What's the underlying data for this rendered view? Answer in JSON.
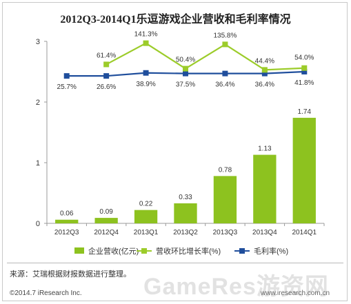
{
  "chart_data": {
    "type": "bar+line",
    "title": "2012Q3-2014Q1乐逗游戏企业营收和毛利率情况",
    "categories": [
      "2012Q3",
      "2012Q4",
      "2013Q1",
      "2013Q2",
      "2013Q3",
      "2013Q4",
      "2014Q1"
    ],
    "ylim": [
      0,
      3
    ],
    "yticks": [
      "0",
      "1",
      "2",
      "3"
    ],
    "grid": false,
    "legend_position": "bottom",
    "series": [
      {
        "name": "企业营收(亿元)",
        "kind": "bar",
        "color": "#8dc21f",
        "values": [
          0.06,
          0.09,
          0.22,
          0.33,
          0.78,
          1.13,
          1.74
        ],
        "labels": [
          "0.06",
          "0.09",
          "0.22",
          "0.33",
          "0.78",
          "1.13",
          "1.74"
        ]
      },
      {
        "name": "营收环比增长率(%)",
        "kind": "line",
        "color": "#9ccc2a",
        "values": [
          null,
          2.62,
          2.97,
          2.55,
          2.95,
          2.53,
          2.56
        ],
        "labels": [
          "",
          "61.4%",
          "141.3%",
          "50.4%",
          "135.8%",
          "44.4%",
          "54.0%"
        ]
      },
      {
        "name": "毛利率(%)",
        "kind": "line",
        "color": "#1f4e9c",
        "values": [
          2.43,
          2.43,
          2.48,
          2.47,
          2.47,
          2.47,
          2.5
        ],
        "labels": [
          "25.7%",
          "26.6%",
          "38.9%",
          "37.5%",
          "36.4%",
          "36.4%",
          "41.8%"
        ]
      }
    ]
  },
  "footer": {
    "source": "来源：艾瑞根据财报数据进行整理。",
    "copyright": "©2014.7 iResearch Inc.",
    "watermark": "GameRes游资网",
    "watermark_url": "www.iresearch.com.cn"
  }
}
